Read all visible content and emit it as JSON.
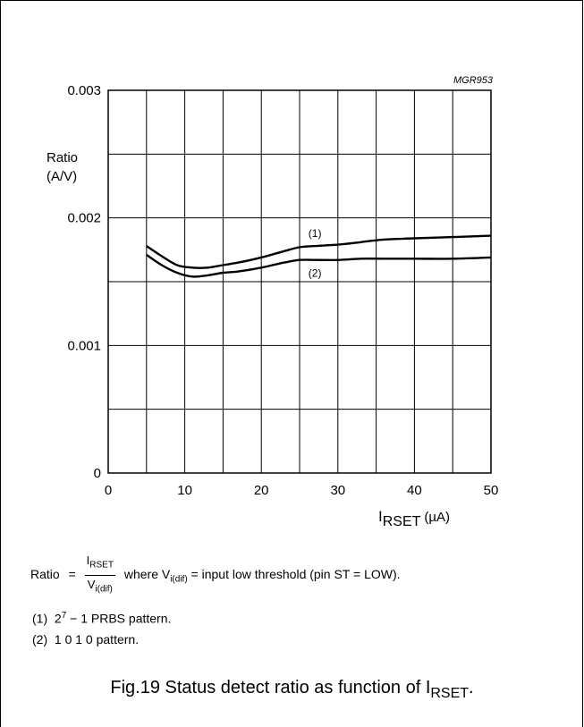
{
  "figure_code": "MGR953",
  "chart_data": {
    "type": "line",
    "ylabel_line1": "Ratio",
    "ylabel_line2": "(A/V)",
    "xlabel_main": "I",
    "xlabel_sub": "RSET",
    "xlabel_unit": "(µA)",
    "xlim": [
      0,
      50
    ],
    "ylim": [
      0,
      0.003
    ],
    "grid": true,
    "x_ticks": [
      {
        "value": 0,
        "label": "0"
      },
      {
        "value": 10,
        "label": "10"
      },
      {
        "value": 20,
        "label": "20"
      },
      {
        "value": 30,
        "label": "30"
      },
      {
        "value": 40,
        "label": "40"
      },
      {
        "value": 50,
        "label": "50"
      }
    ],
    "y_ticks": [
      {
        "value": 0,
        "label": "0"
      },
      {
        "value": 0.001,
        "label": "0.001"
      },
      {
        "value": 0.002,
        "label": "0.002"
      },
      {
        "value": 0.003,
        "label": "0.003"
      }
    ],
    "x_grid_step": 5,
    "y_grid_step": 0.0005,
    "series": [
      {
        "name": "(1)",
        "x": [
          5,
          7,
          9,
          11,
          13,
          15,
          17,
          20,
          23,
          25,
          27,
          30,
          33,
          36,
          40,
          45,
          50
        ],
        "y": [
          0.00178,
          0.0017,
          0.00163,
          0.00161,
          0.00161,
          0.00163,
          0.00165,
          0.00169,
          0.00174,
          0.00177,
          0.00178,
          0.00179,
          0.00181,
          0.00183,
          0.00184,
          0.00185,
          0.00186
        ]
      },
      {
        "name": "(2)",
        "x": [
          5,
          7,
          9,
          11,
          13,
          15,
          17,
          20,
          23,
          25,
          27,
          30,
          33,
          36,
          40,
          45,
          50
        ],
        "y": [
          0.00171,
          0.00163,
          0.00157,
          0.00154,
          0.00155,
          0.00157,
          0.00158,
          0.00161,
          0.00165,
          0.00167,
          0.00167,
          0.00167,
          0.00168,
          0.00168,
          0.00168,
          0.00168,
          0.00169
        ]
      }
    ]
  },
  "formula": {
    "lhs": "Ratio",
    "eq": "=",
    "num_main": "I",
    "num_sub": "RSET",
    "den_main": "V",
    "den_sub": "i(dif)",
    "where": "where V",
    "where_sub": "i(dif)",
    "rest": " = input low threshold (pin ST = LOW)."
  },
  "notes": [
    {
      "tag": "(1)",
      "base": "2",
      "sup": "7",
      "text": " − 1 PRBS pattern."
    },
    {
      "tag": "(2)",
      "text": "1 0 1 0 pattern."
    }
  ],
  "caption": {
    "text": "Fig.19  Status detect ratio as function of I",
    "sub": "RSET",
    "end": "."
  }
}
